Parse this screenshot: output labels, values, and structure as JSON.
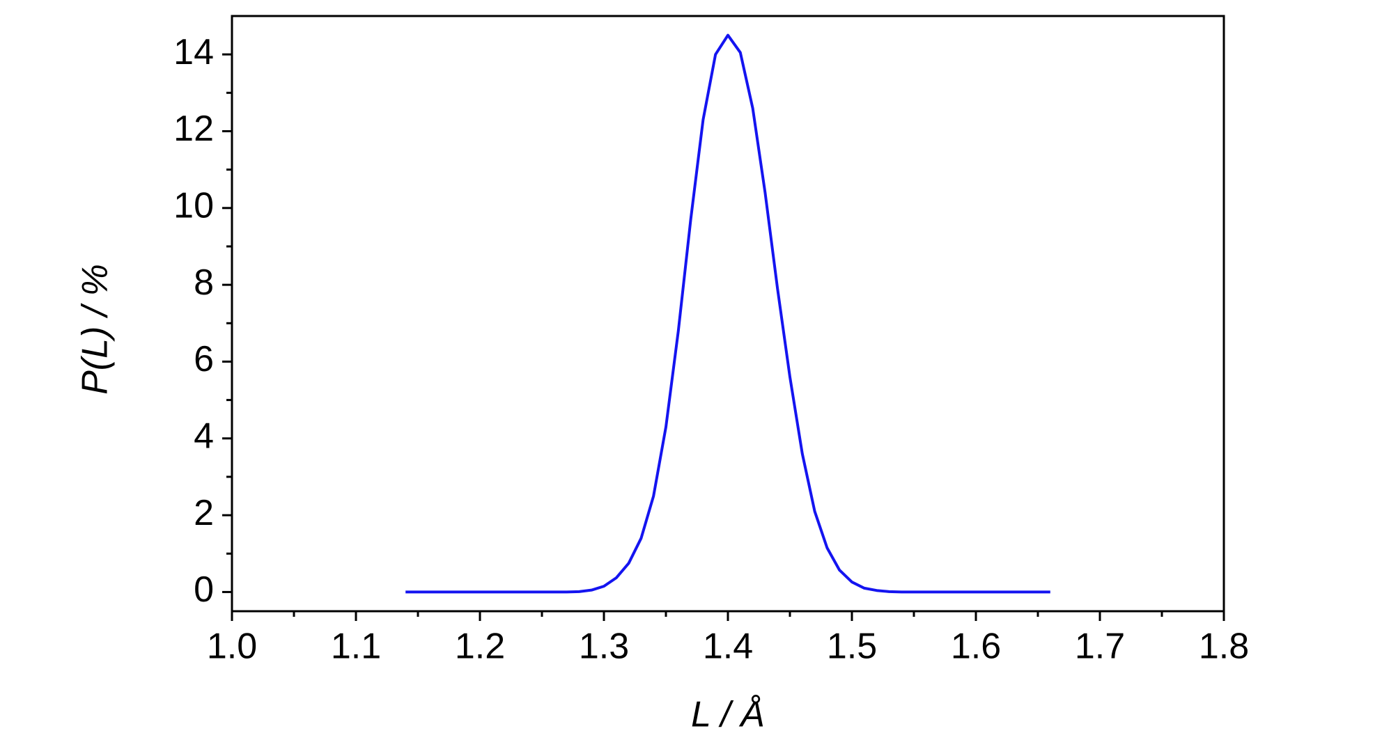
{
  "chart_data": {
    "type": "line",
    "x_label": "L / Å",
    "y_label": "P(L) / %",
    "xlim": [
      1.0,
      1.8
    ],
    "ylim": [
      -0.5,
      15
    ],
    "xticks": [
      {
        "value": 1.0,
        "label": "1.0"
      },
      1.1,
      1.2,
      1.3,
      1.4,
      1.5,
      1.6,
      1.7,
      1.8
    ],
    "yticks": [
      0,
      2,
      4,
      6,
      8,
      10,
      12,
      14
    ],
    "xminorticks": [
      1.05,
      1.15,
      1.25,
      1.35,
      1.45,
      1.55,
      1.65,
      1.75
    ],
    "yminorticks": [
      1,
      3,
      5,
      7,
      9,
      11,
      13
    ],
    "x": [
      1.14,
      1.15,
      1.16,
      1.17,
      1.18,
      1.19,
      1.2,
      1.21,
      1.22,
      1.23,
      1.24,
      1.25,
      1.26,
      1.27,
      1.28,
      1.29,
      1.3,
      1.31,
      1.32,
      1.33,
      1.34,
      1.35,
      1.36,
      1.37,
      1.38,
      1.39,
      1.4,
      1.41,
      1.42,
      1.43,
      1.44,
      1.45,
      1.46,
      1.47,
      1.48,
      1.49,
      1.5,
      1.51,
      1.52,
      1.53,
      1.54,
      1.55,
      1.56,
      1.57,
      1.58,
      1.59,
      1.6,
      1.61,
      1.62,
      1.63,
      1.64,
      1.65,
      1.66
    ],
    "series": [
      {
        "name": "P(L)",
        "color": "#1414f0",
        "values": [
          0,
          0,
          0,
          0,
          0,
          0,
          0,
          0,
          0,
          0,
          0,
          0,
          0,
          0,
          0.01,
          0.05,
          0.15,
          0.37,
          0.75,
          1.4,
          2.5,
          4.3,
          6.8,
          9.7,
          12.3,
          14.0,
          14.5,
          14.05,
          12.6,
          10.4,
          7.9,
          5.6,
          3.6,
          2.1,
          1.15,
          0.57,
          0.26,
          0.1,
          0.04,
          0.01,
          0,
          0,
          0,
          0,
          0,
          0,
          0,
          0,
          0,
          0,
          0,
          0,
          0
        ]
      }
    ]
  }
}
